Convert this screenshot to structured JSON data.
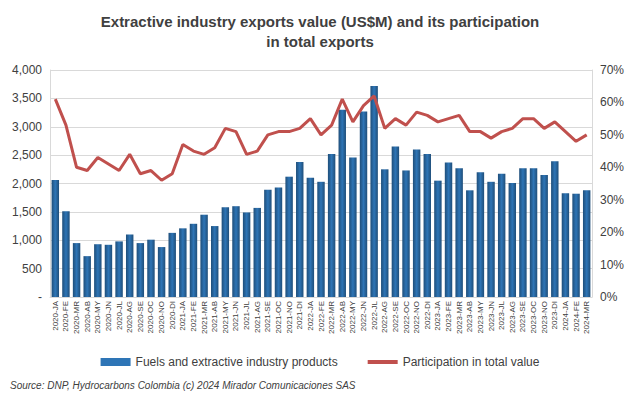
{
  "chart_data": {
    "type": "bar",
    "title": "Extractive industry exports value (US$M) and its participation\nin total exports",
    "source": "Source: DNP, Hydrocarbons Colombia (c) 2024 Mirador Comunicaciones SAS",
    "categories": [
      "2020-JA",
      "2020-FE",
      "2020-MR",
      "2020-AB",
      "2020-MY",
      "2020-JN",
      "2020-JL",
      "2020-AG",
      "2020-SE",
      "2020-OC",
      "2020-NO",
      "2020-DI",
      "2021-JA",
      "2021-FE",
      "2021-MR",
      "2021-AB",
      "2021-MY",
      "2021-JN",
      "2021-JL",
      "2021-AG",
      "2021-SE",
      "2021-OC",
      "2021-NO",
      "2021-DI",
      "2022-JA",
      "2022-FE",
      "2022-MR",
      "2022-AB",
      "2022-MY",
      "2022-JN",
      "2022-JL",
      "2022-AG",
      "2022-SE",
      "2022-OC",
      "2022-NO",
      "2022-DI",
      "2023-JA",
      "2023-FE",
      "2023-MR",
      "2023-AB",
      "2023-MY",
      "2023-JN",
      "2023-JL",
      "2023-AG",
      "2023-SE",
      "2023-OC",
      "2023-NO",
      "2023-DI",
      "2024-JA",
      "2024-FE",
      "2024-MR"
    ],
    "series": [
      {
        "name": "Fuels and extractive industry products",
        "type": "bar",
        "color": "#2e75b6",
        "values": [
          2060,
          1510,
          950,
          720,
          930,
          920,
          980,
          1100,
          950,
          1010,
          880,
          1130,
          1210,
          1290,
          1450,
          1250,
          1580,
          1600,
          1490,
          1570,
          1890,
          1930,
          2120,
          2380,
          2100,
          2030,
          2520,
          3300,
          2460,
          3270,
          3720,
          2250,
          2650,
          2230,
          2600,
          2520,
          2050,
          2370,
          2270,
          1880,
          2200,
          2030,
          2170,
          2010,
          2270,
          2270,
          2150,
          2390,
          1830,
          1820,
          1880
        ]
      },
      {
        "name": "Participation in total value",
        "type": "line",
        "axis": "y2",
        "color": "#c0504d",
        "values": [
          61,
          53,
          40,
          39,
          43,
          41,
          39,
          44,
          38,
          39,
          36,
          38,
          47,
          45,
          44,
          46,
          52,
          51,
          44,
          45,
          50,
          51,
          51,
          52,
          55,
          50,
          53,
          61,
          54,
          59,
          62,
          52,
          55,
          53,
          57,
          56,
          54,
          55,
          56,
          51,
          51,
          49,
          51,
          52,
          55,
          55,
          52,
          54,
          51,
          48,
          50
        ]
      }
    ],
    "ylim": [
      0,
      4000
    ],
    "yticks": [
      {
        "value": 0,
        "label": "-"
      },
      500,
      {
        "value": 1000,
        "label": "1,000"
      },
      {
        "value": 1500,
        "label": "1,500"
      },
      {
        "value": 2000,
        "label": "2,000"
      },
      {
        "value": 2500,
        "label": "2,500"
      },
      {
        "value": 3000,
        "label": "3,000"
      },
      {
        "value": 3500,
        "label": "3,500"
      },
      {
        "value": 4000,
        "label": "4,000"
      }
    ],
    "y2lim": [
      0,
      70
    ],
    "y2ticks": [
      {
        "value": 0,
        "label": "0%"
      },
      {
        "value": 10,
        "label": "10%"
      },
      {
        "value": 20,
        "label": "20%"
      },
      {
        "value": 30,
        "label": "30%"
      },
      {
        "value": 40,
        "label": "40%"
      },
      {
        "value": 50,
        "label": "50%"
      },
      {
        "value": 60,
        "label": "60%"
      },
      {
        "value": 70,
        "label": "70%"
      }
    ],
    "grid": true,
    "legend": "bottom"
  }
}
